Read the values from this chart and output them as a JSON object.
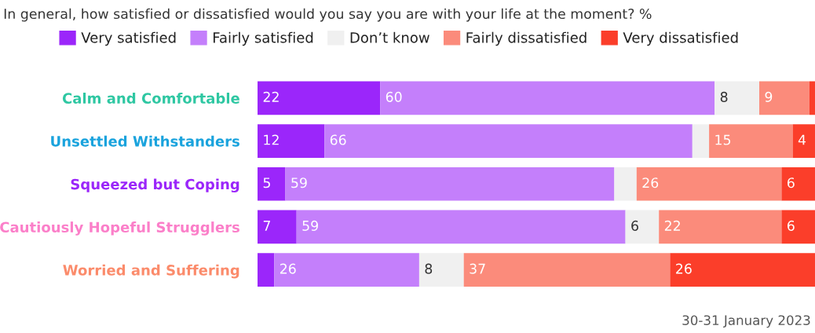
{
  "chart_data": {
    "type": "bar",
    "orientation": "horizontal",
    "stacked": true,
    "title": "In general, how satisfied or dissatisfied would you say you are with your life at the moment? %",
    "categories": [
      "Calm and Comfortable",
      "Unsettled Withstanders",
      "Squeezed but Coping",
      "Cautiously Hopeful Strugglers",
      "Worried and Suffering"
    ],
    "series": [
      {
        "name": "Very satisfied",
        "color": "#9b26fa",
        "values": [
          22,
          12,
          5,
          7,
          3
        ],
        "value_labels": [
          "22",
          "12",
          "5",
          "7",
          null
        ]
      },
      {
        "name": "Fairly satisfied",
        "color": "#c47ffb",
        "values": [
          60,
          66,
          59,
          59,
          26
        ],
        "value_labels": [
          "60",
          "66",
          "59",
          "59",
          "26"
        ]
      },
      {
        "name": "Don’t know",
        "color": "#f0f0f0",
        "values": [
          8,
          3,
          4,
          6,
          8
        ],
        "value_labels": [
          "8",
          null,
          null,
          "6",
          "8"
        ]
      },
      {
        "name": "Fairly dissatisfied",
        "color": "#fb8b7b",
        "values": [
          9,
          15,
          26,
          22,
          37
        ],
        "value_labels": [
          "9",
          "15",
          "26",
          "22",
          "37"
        ]
      },
      {
        "name": "Very dissatisfied",
        "color": "#fb3e2a",
        "values": [
          1,
          4,
          6,
          6,
          26
        ],
        "value_labels": [
          null,
          "4",
          "6",
          "6",
          "26"
        ]
      }
    ],
    "legend": "top",
    "annotations": [
      "30-31 January 2023"
    ]
  }
}
